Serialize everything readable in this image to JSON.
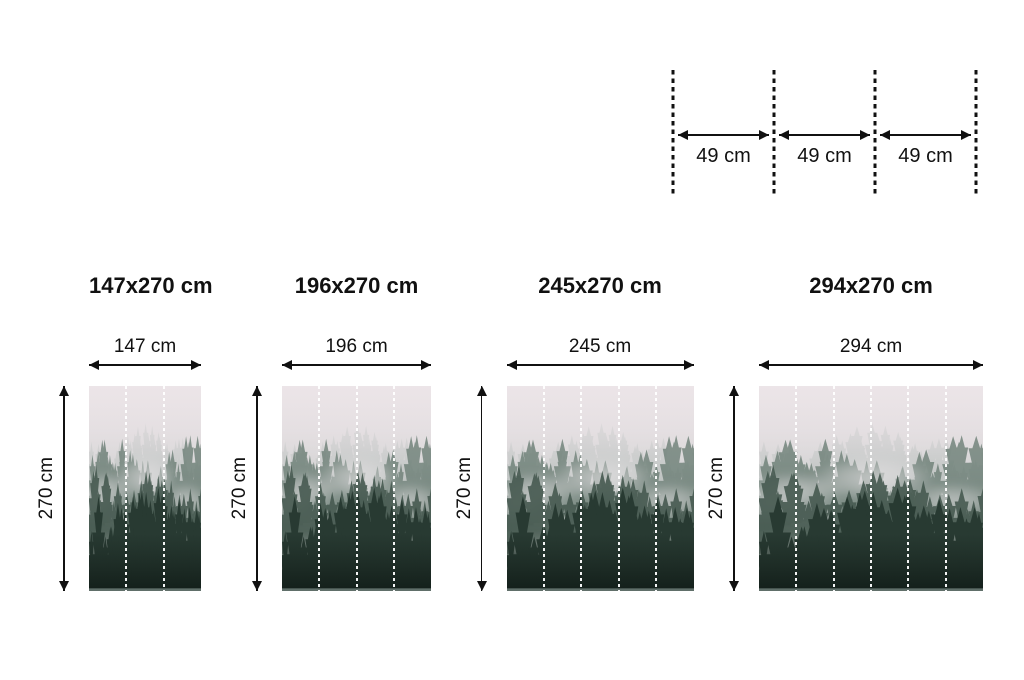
{
  "diagram": {
    "segments": [
      "49 cm",
      "49 cm",
      "49 cm"
    ]
  },
  "products": [
    {
      "title": "147x270 cm",
      "width_label": "147 cm",
      "height_label": "270 cm",
      "width_cm": 147,
      "height_cm": 270,
      "panels": 3
    },
    {
      "title": "196x270 cm",
      "width_label": "196 cm",
      "height_label": "270 cm",
      "width_cm": 196,
      "height_cm": 270,
      "panels": 4
    },
    {
      "title": "245x270 cm",
      "width_label": "245 cm",
      "height_label": "270 cm",
      "width_cm": 245,
      "height_cm": 270,
      "panels": 5
    },
    {
      "title": "294x270 cm",
      "width_label": "294 cm",
      "height_label": "270 cm",
      "width_cm": 294,
      "height_cm": 270,
      "panels": 6
    }
  ],
  "colors": {
    "background": "#ffffff",
    "text": "#111111",
    "dimension_lines": "#111111",
    "panel_seam": "#ffffff",
    "photo_palette": [
      "#97a5a0",
      "#6a7d74",
      "#475a51",
      "#283a32"
    ],
    "photo_sky_top": "#e9e0e4",
    "photo_sky_bottom": "#4d6057"
  }
}
